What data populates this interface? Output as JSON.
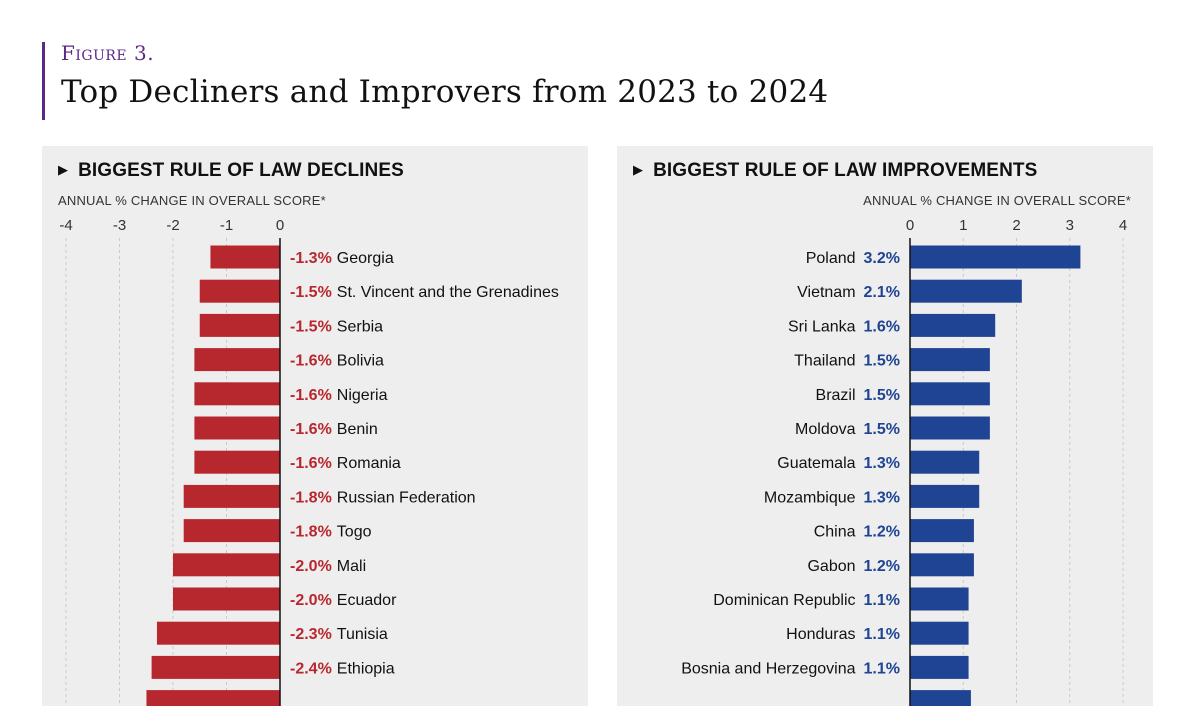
{
  "figure": {
    "label": "Figure 3.",
    "title": "Top Decliners and Improvers from 2023 to 2024"
  },
  "colors": {
    "accent": "#5b2a86",
    "decline": "#b7282e",
    "improve": "#1f4493",
    "panel_bg": "#efeeee"
  },
  "icons": {
    "panel_marker": "triangle-right-icon"
  },
  "chart_data": [
    {
      "type": "bar",
      "orientation": "horizontal",
      "title": "BIGGEST RULE OF LAW DECLINES",
      "xlabel": "ANNUAL % CHANGE IN OVERALL SCORE*",
      "ticks": [
        "-4",
        "-3",
        "-2",
        "-1",
        "0"
      ],
      "xlim": [
        -4,
        0
      ],
      "grid": true,
      "categories": [
        "Georgia",
        "St. Vincent and the Grenadines",
        "Serbia",
        "Bolivia",
        "Nigeria",
        "Benin",
        "Romania",
        "Russian Federation",
        "Togo",
        "Mali",
        "Ecuador",
        "Tunisia",
        "Ethiopia"
      ],
      "values": [
        -1.3,
        -1.5,
        -1.5,
        -1.6,
        -1.6,
        -1.6,
        -1.6,
        -1.8,
        -1.8,
        -2.0,
        -2.0,
        -2.3,
        -2.4
      ],
      "value_labels": [
        "-1.3%",
        "-1.5%",
        "-1.5%",
        "-1.6%",
        "-1.6%",
        "-1.6%",
        "-1.6%",
        "-1.8%",
        "-1.8%",
        "-2.0%",
        "-2.0%",
        "-2.3%",
        "-2.4%"
      ]
    },
    {
      "type": "bar",
      "orientation": "horizontal",
      "title": "BIGGEST RULE OF LAW IMPROVEMENTS",
      "xlabel": "ANNUAL % CHANGE IN OVERALL SCORE*",
      "ticks": [
        "0",
        "1",
        "2",
        "3",
        "4"
      ],
      "xlim": [
        0,
        4
      ],
      "grid": true,
      "categories": [
        "Poland",
        "Vietnam",
        "Sri Lanka",
        "Thailand",
        "Brazil",
        "Moldova",
        "Guatemala",
        "Mozambique",
        "China",
        "Gabon",
        "Dominican Republic",
        "Honduras",
        "Bosnia and Herzegovina"
      ],
      "values": [
        3.2,
        2.1,
        1.6,
        1.5,
        1.5,
        1.5,
        1.3,
        1.3,
        1.2,
        1.2,
        1.1,
        1.1,
        1.1
      ],
      "value_labels": [
        "3.2%",
        "2.1%",
        "1.6%",
        "1.5%",
        "1.5%",
        "1.5%",
        "1.3%",
        "1.3%",
        "1.2%",
        "1.2%",
        "1.1%",
        "1.1%",
        "1.1%"
      ]
    }
  ]
}
